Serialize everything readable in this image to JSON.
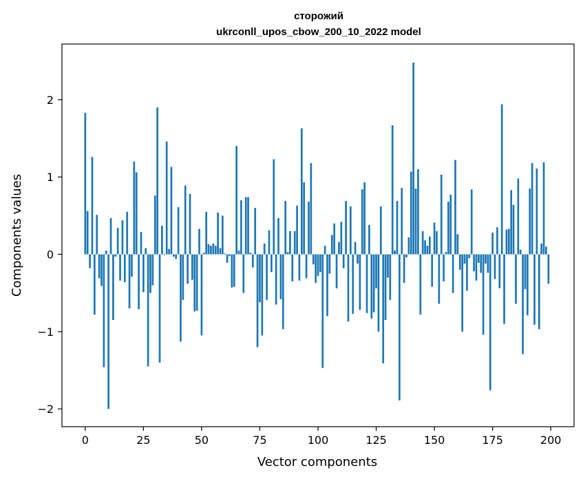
{
  "chart_data": {
    "type": "bar",
    "title": "сторожий",
    "subtitle": "ukrconll_upos_cbow_200_10_2022 model",
    "xlabel": "Vector components",
    "ylabel": "Components values",
    "xlim": [
      -10,
      210
    ],
    "ylim": [
      -2.23,
      2.72
    ],
    "xticks": [
      0,
      25,
      50,
      75,
      100,
      125,
      150,
      175,
      200
    ],
    "yticks": [
      -2,
      -1,
      0,
      1,
      2
    ],
    "ytick_labels": [
      "−2",
      "−1",
      "0",
      "1",
      "2"
    ],
    "grid": false,
    "bar_color": "#1f77b4",
    "x": [
      0,
      1,
      2,
      3,
      4,
      5,
      6,
      7,
      8,
      9,
      10,
      11,
      12,
      13,
      14,
      15,
      16,
      17,
      18,
      19,
      20,
      21,
      22,
      23,
      24,
      25,
      26,
      27,
      28,
      29,
      30,
      31,
      32,
      33,
      34,
      35,
      36,
      37,
      38,
      39,
      40,
      41,
      42,
      43,
      44,
      45,
      46,
      47,
      48,
      49,
      50,
      51,
      52,
      53,
      54,
      55,
      56,
      57,
      58,
      59,
      60,
      61,
      62,
      63,
      64,
      65,
      66,
      67,
      68,
      69,
      70,
      71,
      72,
      73,
      74,
      75,
      76,
      77,
      78,
      79,
      80,
      81,
      82,
      83,
      84,
      85,
      86,
      87,
      88,
      89,
      90,
      91,
      92,
      93,
      94,
      95,
      96,
      97,
      98,
      99,
      100,
      101,
      102,
      103,
      104,
      105,
      106,
      107,
      108,
      109,
      110,
      111,
      112,
      113,
      114,
      115,
      116,
      117,
      118,
      119,
      120,
      121,
      122,
      123,
      124,
      125,
      126,
      127,
      128,
      129,
      130,
      131,
      132,
      133,
      134,
      135,
      136,
      137,
      138,
      139,
      140,
      141,
      142,
      143,
      144,
      145,
      146,
      147,
      148,
      149,
      150,
      151,
      152,
      153,
      154,
      155,
      156,
      157,
      158,
      159,
      160,
      161,
      162,
      163,
      164,
      165,
      166,
      167,
      168,
      169,
      170,
      171,
      172,
      173,
      174,
      175,
      176,
      177,
      178,
      179,
      180,
      181,
      182,
      183,
      184,
      185,
      186,
      187,
      188,
      189,
      190,
      191,
      192,
      193,
      194,
      195,
      196,
      197,
      198,
      199
    ],
    "values": [
      1.83,
      0.56,
      -0.18,
      1.26,
      -0.78,
      0.51,
      -0.31,
      -0.41,
      -1.46,
      0.05,
      -2.0,
      0.47,
      -0.85,
      -0.03,
      0.34,
      -0.34,
      0.44,
      -0.36,
      0.55,
      -0.7,
      -0.29,
      1.2,
      1.06,
      -0.71,
      0.29,
      -0.49,
      0.08,
      -1.45,
      -0.5,
      -0.4,
      0.76,
      1.9,
      -1.4,
      0.37,
      -0.01,
      1.46,
      0.07,
      1.13,
      -0.03,
      -0.06,
      0.61,
      -1.13,
      -0.59,
      0.89,
      -0.38,
      0.78,
      -0.33,
      -0.74,
      -0.73,
      0.33,
      -1.05,
      0.02,
      0.55,
      0.13,
      0.11,
      0.14,
      0.11,
      0.54,
      0.08,
      0.5,
      0.01,
      -0.11,
      -0.02,
      -0.43,
      -0.42,
      1.4,
      0.05,
      0.7,
      -0.5,
      0.74,
      0.74,
      0.02,
      -0.17,
      0.6,
      -1.2,
      -0.62,
      -1.05,
      0.14,
      -0.59,
      0.31,
      -0.23,
      1.23,
      -0.65,
      0.47,
      -0.58,
      -0.97,
      0.69,
      0.03,
      0.3,
      -0.35,
      0.3,
      0.63,
      -0.34,
      1.63,
      0.93,
      -0.31,
      0.68,
      1.18,
      -0.13,
      -0.37,
      -0.28,
      -0.23,
      -1.47,
      0.11,
      -0.8,
      -0.25,
      0.25,
      0.4,
      -0.44,
      0.16,
      0.42,
      -0.18,
      0.69,
      -0.87,
      0.62,
      -0.77,
      0.16,
      -0.12,
      -0.72,
      0.84,
      0.93,
      -0.76,
      0.38,
      -0.83,
      -0.75,
      -0.44,
      -1.0,
      0.62,
      -1.41,
      -0.85,
      -0.3,
      -0.59,
      1.67,
      0.05,
      0.69,
      -1.89,
      0.86,
      -0.37,
      -0.04,
      0.22,
      1.07,
      2.48,
      0.85,
      1.1,
      -0.78,
      0.3,
      0.18,
      0.11,
      0.23,
      -0.42,
      0.41,
      0.3,
      -0.64,
      1.03,
      -0.35,
      0.03,
      0.68,
      0.77,
      -0.5,
      1.22,
      0.26,
      -0.2,
      -1.0,
      -0.12,
      -0.47,
      -0.05,
      0.84,
      -0.22,
      -0.34,
      -0.11,
      -0.24,
      -1.04,
      -0.12,
      -0.24,
      -1.76,
      0.28,
      -0.32,
      0.35,
      -0.44,
      1.94,
      -0.9,
      0.32,
      0.33,
      0.83,
      0.64,
      -0.64,
      0.98,
      0.06,
      -1.29,
      -0.45,
      -0.79,
      0.85,
      1.18,
      -0.91,
      1.11,
      -0.97,
      0.14,
      1.19,
      0.1,
      -0.38
    ]
  }
}
